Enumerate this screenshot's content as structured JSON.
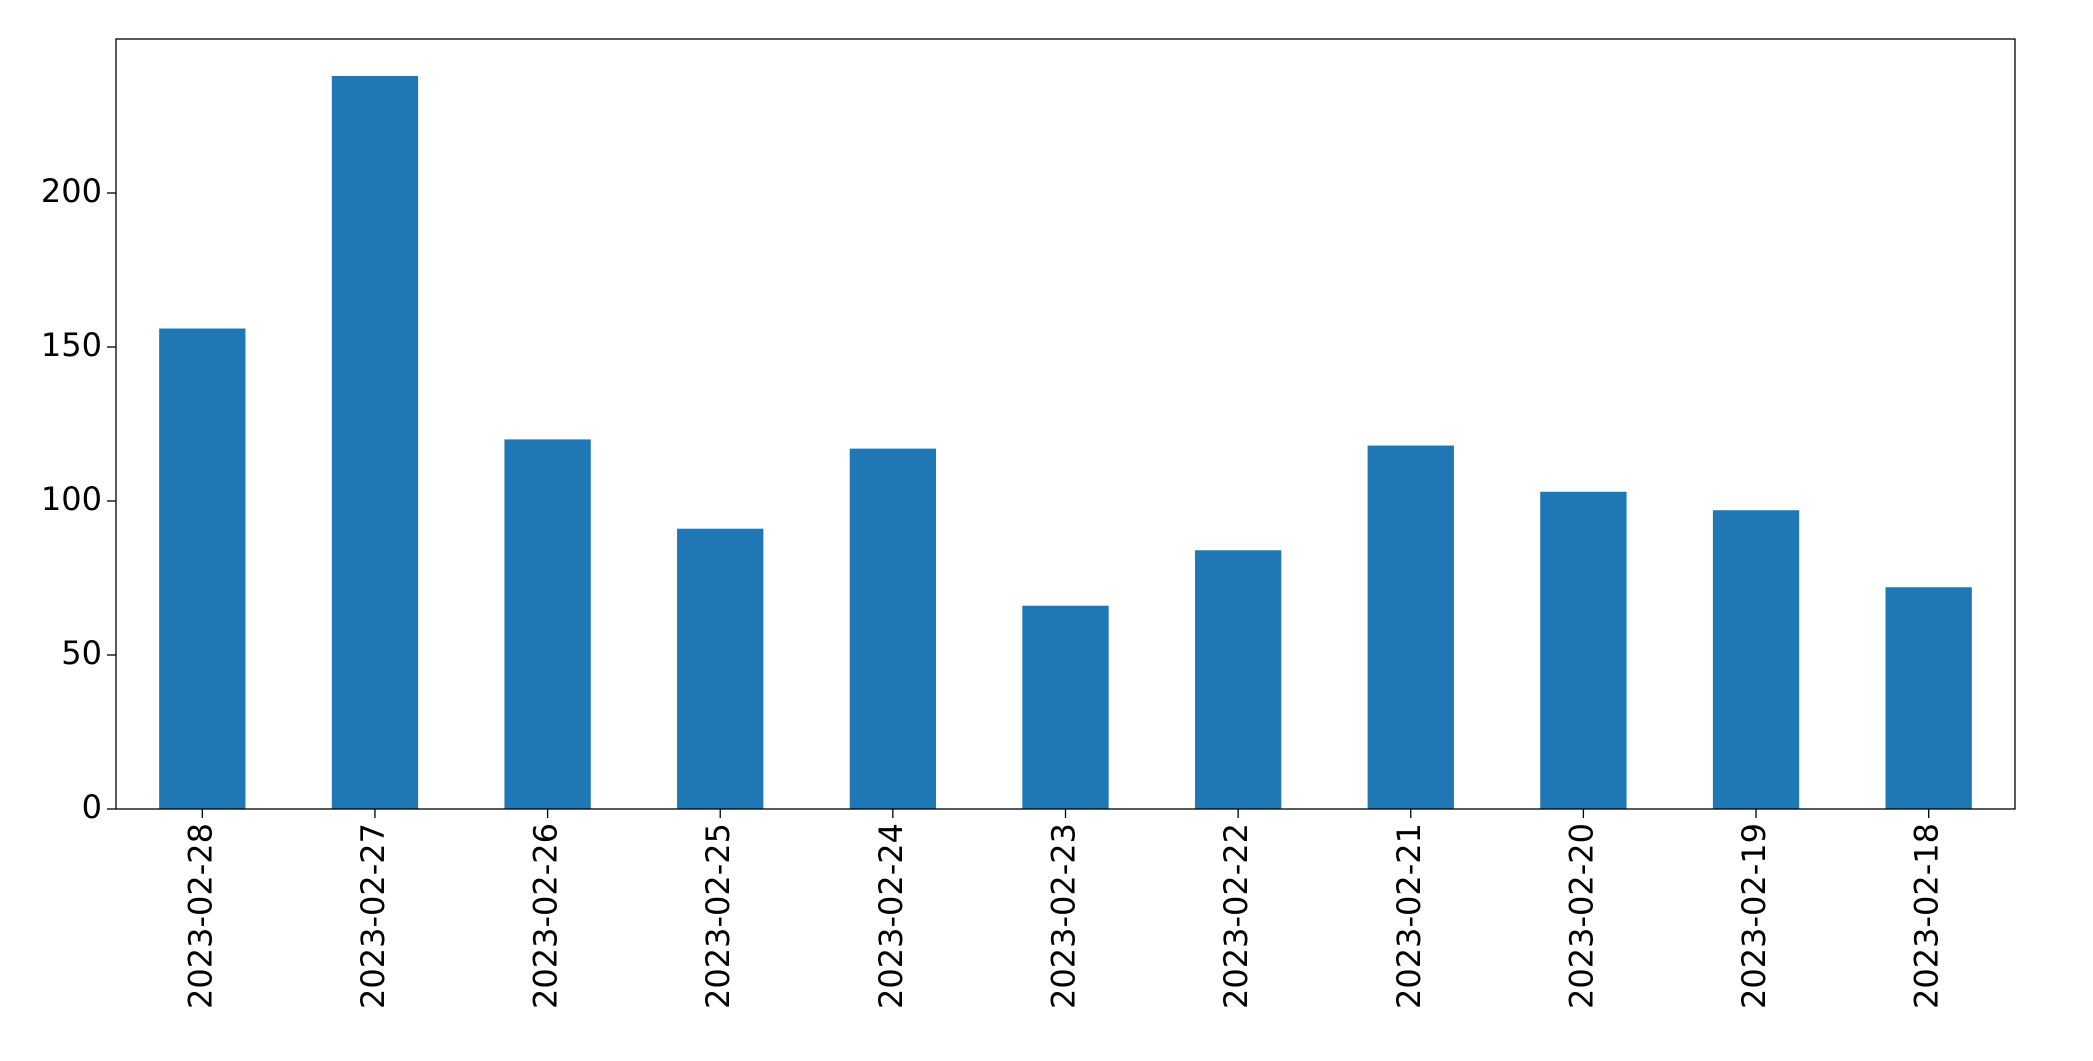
{
  "chart_data": {
    "type": "bar",
    "categories": [
      "2023-02-28",
      "2023-02-27",
      "2023-02-26",
      "2023-02-25",
      "2023-02-24",
      "2023-02-23",
      "2023-02-22",
      "2023-02-21",
      "2023-02-20",
      "2023-02-19",
      "2023-02-18"
    ],
    "values": [
      156,
      238,
      120,
      91,
      117,
      66,
      84,
      118,
      103,
      97,
      72
    ],
    "color": "#1f77b4",
    "ylim": [
      0,
      250
    ],
    "yticks": [
      0,
      50,
      100,
      150,
      200
    ],
    "grid": false
  }
}
